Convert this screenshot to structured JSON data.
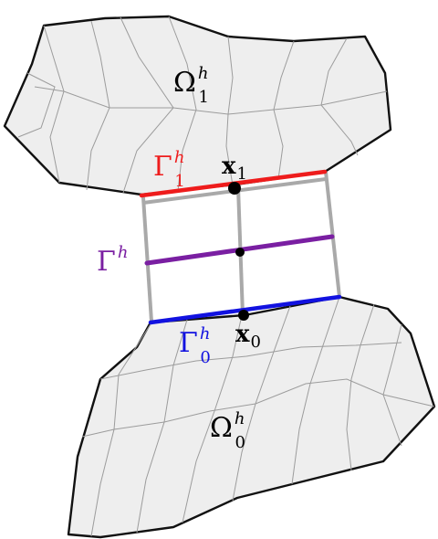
{
  "labels": {
    "omega1": {
      "base": "Ω",
      "sup": "h",
      "sub": "1"
    },
    "omega0": {
      "base": "Ω",
      "sup": "h",
      "sub": "0"
    },
    "gamma1": {
      "base": "Γ",
      "sup": "h",
      "sub": "1"
    },
    "gamma0": {
      "base": "Γ",
      "sup": "h",
      "sub": "0"
    },
    "gamma": {
      "base": "Γ",
      "sup": "h"
    },
    "x1": {
      "base": "x",
      "sub": "1"
    },
    "x0": {
      "base": "x",
      "sub": "0"
    }
  },
  "colors": {
    "gamma1": "#ee1c1c",
    "gamma0": "#1212e0",
    "gamma": "#7a1fa2",
    "mesh_fill": "#eeeeee",
    "mesh_edge": "#9c9c9c",
    "connector": "#a9a9a9",
    "point": "#000000"
  }
}
